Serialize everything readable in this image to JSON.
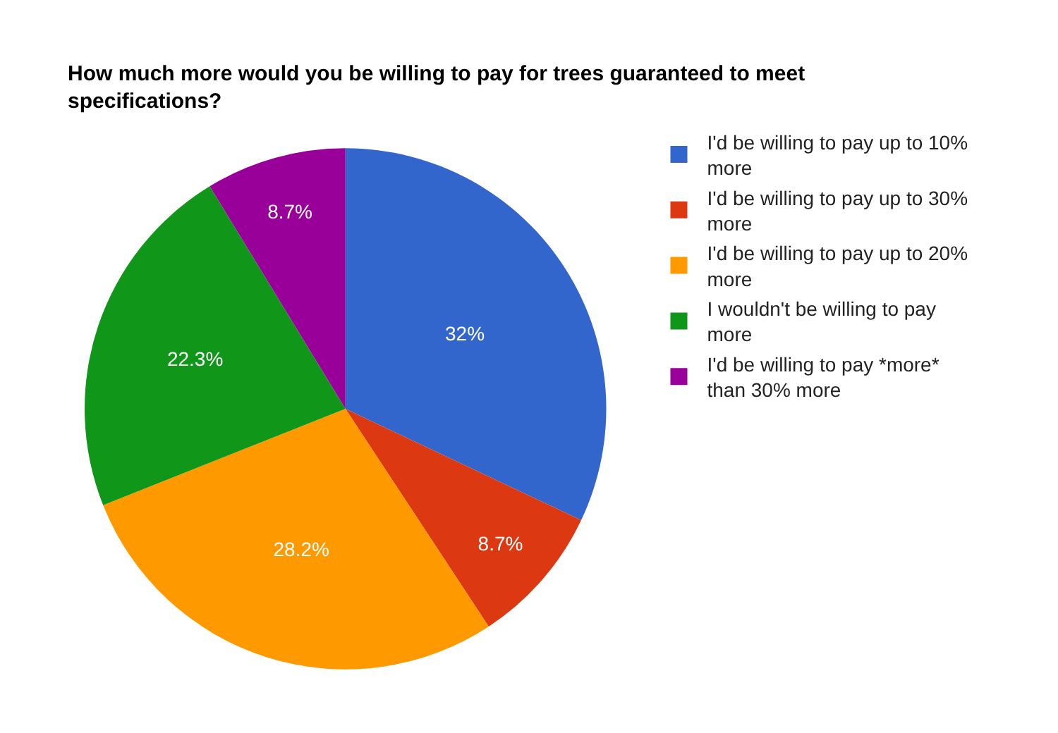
{
  "chart_data": {
    "type": "pie",
    "title": "How much more would you be willing to pay for trees guaranteed to meet specifications?",
    "categories": [
      "I'd be willing to pay up to 10% more",
      "I'd be willing to pay up to 30% more",
      "I'd be willing to pay up to 20% more",
      "I wouldn't be willing to pay more",
      "I'd be willing to pay *more* than 30% more"
    ],
    "values": [
      32,
      8.7,
      28.2,
      22.3,
      8.7
    ],
    "value_labels": [
      "32%",
      "8.7%",
      "28.2%",
      "22.3%",
      "8.7%"
    ],
    "colors": [
      "#3366cc",
      "#dc3912",
      "#ff9900",
      "#109618",
      "#990099"
    ],
    "legend": "top right"
  }
}
